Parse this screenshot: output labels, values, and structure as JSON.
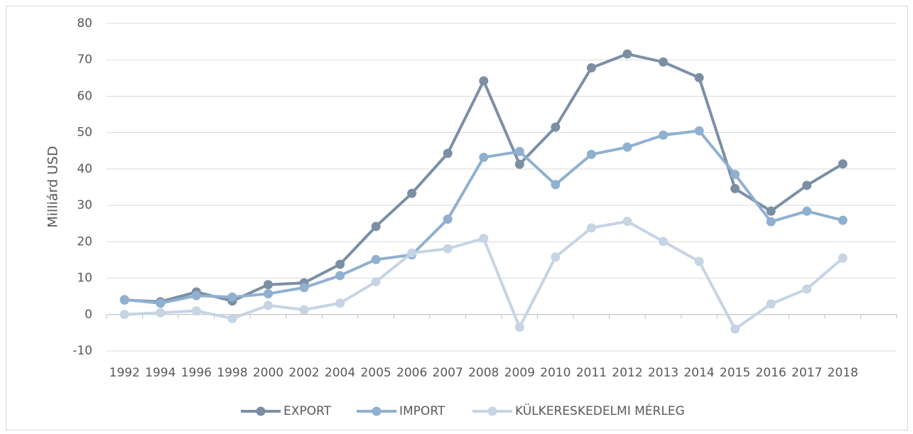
{
  "chart_data": {
    "type": "line",
    "y_label": "Milliárd USD",
    "categories": [
      "1992",
      "1994",
      "1996",
      "1998",
      "2000",
      "2002",
      "2004",
      "2005",
      "2006",
      "2007",
      "2008",
      "2009",
      "2010",
      "2011",
      "2012",
      "2013",
      "2014",
      "2015",
      "2016",
      "2017",
      "2018",
      null
    ],
    "series": [
      {
        "name": "EXPORT",
        "color": "#7b8fa4",
        "values": [
          4,
          3.5,
          6.2,
          3.7,
          8.2,
          8.7,
          13.8,
          24.2,
          33.3,
          44.3,
          64.2,
          41.3,
          51.5,
          67.8,
          71.6,
          69.4,
          65.1,
          34.6,
          28.4,
          35.5,
          41.4,
          null
        ]
      },
      {
        "name": "IMPORT",
        "color": "#8fb0d0",
        "values": [
          4.1,
          3.1,
          5.2,
          4.8,
          5.7,
          7.4,
          10.7,
          15.1,
          16.4,
          26.2,
          43.2,
          44.8,
          35.7,
          44.0,
          46.0,
          49.3,
          50.5,
          38.5,
          25.5,
          28.4,
          25.9,
          null
        ]
      },
      {
        "name": "KÜLKERESKEDELMI MÉRLEG",
        "color": "#c6d4e4",
        "values": [
          0,
          0.5,
          1.0,
          -1.1,
          2.5,
          1.3,
          3.1,
          9.0,
          16.9,
          18.1,
          20.9,
          -3.5,
          15.8,
          23.8,
          25.6,
          20.1,
          14.6,
          -4.0,
          2.9,
          7.0,
          15.5,
          null
        ]
      }
    ],
    "ylim": [
      -10,
      80
    ],
    "yticks": [
      -10,
      0,
      10,
      20,
      30,
      40,
      50,
      60,
      70,
      80
    ],
    "grid": true,
    "legend": "bottom"
  }
}
